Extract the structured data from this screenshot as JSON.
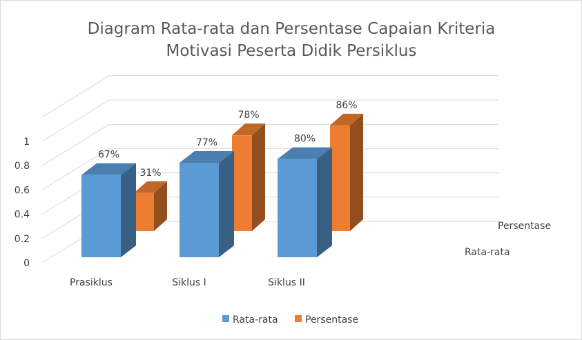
{
  "chart_data": {
    "type": "bar",
    "title": [
      "Diagram Rata-rata dan Persentase Capaian Kriteria",
      "Motivasi Peserta Didik Persiklus"
    ],
    "categories": [
      "Prasiklus",
      "Siklus I",
      "Siklus II"
    ],
    "series": [
      {
        "name": "Rata-rata",
        "values": [
          0.67,
          0.77,
          0.8
        ],
        "labels": [
          "67%",
          "77%",
          "80%"
        ],
        "color": "#5b9bd5"
      },
      {
        "name": "Persentase",
        "values": [
          0.31,
          0.78,
          0.86
        ],
        "labels": [
          "31%",
          "78%",
          "86%"
        ],
        "color": "#ed7d31"
      }
    ],
    "y_ticks": [
      "0",
      "0.2",
      "0.4",
      "0.6",
      "0.8",
      "1"
    ],
    "ylim": [
      0,
      1
    ],
    "depth_axis_labels": [
      "Persentase",
      "Rata-rata"
    ],
    "grid": true,
    "legend_position": "bottom",
    "style": "3d-column"
  }
}
